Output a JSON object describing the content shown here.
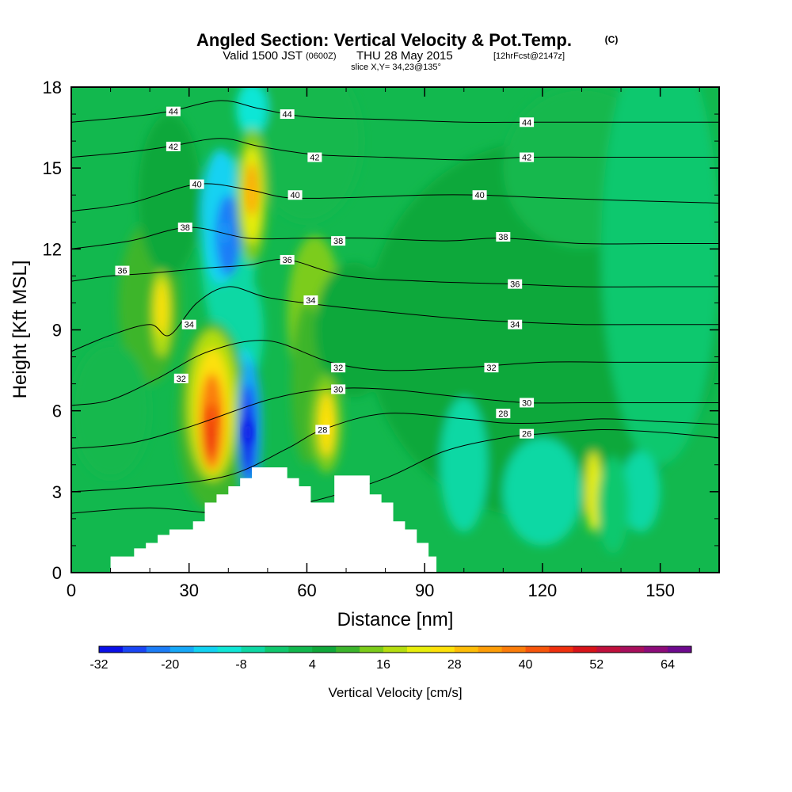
{
  "header": {
    "title": "Angled Section: Vertical Velocity & Pot.Temp.",
    "title_unit": "(C)",
    "valid_prefix": "Valid 1500 JST",
    "valid_utc": "(0600Z)",
    "valid_date": "THU 28 May 2015",
    "forecast": "[12hrFcst@2147z]",
    "slice": "slice X,Y= 34,23@135°"
  },
  "chart_data": {
    "type": "heatmap",
    "xlabel": "Distance [nm]",
    "ylabel": "Height [Kft MSL]",
    "xlim": [
      0,
      165
    ],
    "ylim": [
      0,
      18
    ],
    "xticks": [
      0,
      30,
      60,
      90,
      120,
      150
    ],
    "yticks": [
      0,
      3,
      6,
      9,
      12,
      15,
      18
    ],
    "field_description": "Vertical Velocity [cm/s] shaded, potential temperature (C) contoured",
    "colorbar": {
      "title": "Vertical Velocity [cm/s]",
      "tick_labels": [
        "-32",
        "-20",
        "-8",
        "4",
        "16",
        "28",
        "40",
        "52",
        "64"
      ],
      "tick_values": [
        -32,
        -20,
        -8,
        4,
        16,
        28,
        40,
        52,
        64
      ],
      "levels": [
        -32,
        -28,
        -24,
        -20,
        -16,
        -12,
        -8,
        -4,
        0,
        4,
        8,
        12,
        16,
        20,
        24,
        28,
        32,
        36,
        40,
        44,
        48,
        52,
        56,
        60,
        64,
        68
      ],
      "colors": [
        "#0a10e8",
        "#1a46f5",
        "#1c7df7",
        "#17a8f8",
        "#12d2f2",
        "#10e6d6",
        "#0ed8a4",
        "#10c86e",
        "#12b84e",
        "#10a83a",
        "#3cb52c",
        "#7ccc1a",
        "#b5de10",
        "#e8ee0c",
        "#fde10a",
        "#fdbd08",
        "#fd9d08",
        "#fb7d0a",
        "#f7560c",
        "#ef300e",
        "#d8141a",
        "#c0103c",
        "#a80f5c",
        "#8d0c7a",
        "#6e0a8e"
      ]
    },
    "features": [
      {
        "label": "updraft core",
        "x": 36,
        "y": 5.8,
        "value": 40
      },
      {
        "label": "updraft aloft",
        "x": 46,
        "y": 14,
        "value": 30
      },
      {
        "label": "downdraft core",
        "x": 45,
        "y": 5.2,
        "value": -30
      },
      {
        "label": "downdraft aloft",
        "x": 39,
        "y": 12.6,
        "value": -20
      },
      {
        "label": "secondary updraft",
        "x": 65,
        "y": 5.5,
        "value": 24
      }
    ],
    "isentropes": [
      {
        "value": 26,
        "points": [
          [
            0,
            2.2
          ],
          [
            20,
            2.4
          ],
          [
            40,
            2.2
          ],
          [
            60,
            2.6
          ],
          [
            80,
            3.5
          ],
          [
            95,
            4.5
          ],
          [
            110,
            5.0
          ],
          [
            120,
            5.15
          ],
          [
            135,
            5.3
          ],
          [
            150,
            5.2
          ],
          [
            165,
            5.0
          ]
        ]
      },
      {
        "value": 28,
        "points": [
          [
            0,
            3.0
          ],
          [
            20,
            3.2
          ],
          [
            40,
            3.6
          ],
          [
            55,
            4.6
          ],
          [
            64,
            5.3
          ],
          [
            80,
            5.9
          ],
          [
            100,
            5.7
          ],
          [
            110,
            5.55
          ],
          [
            120,
            5.55
          ],
          [
            135,
            5.7
          ],
          [
            150,
            5.6
          ],
          [
            165,
            5.5
          ]
        ]
      },
      {
        "value": 30,
        "points": [
          [
            0,
            4.6
          ],
          [
            15,
            4.8
          ],
          [
            30,
            5.4
          ],
          [
            50,
            6.4
          ],
          [
            65,
            6.8
          ],
          [
            80,
            6.8
          ],
          [
            100,
            6.5
          ],
          [
            116,
            6.3
          ],
          [
            130,
            6.3
          ],
          [
            150,
            6.3
          ],
          [
            165,
            6.3
          ]
        ]
      },
      {
        "value": 32,
        "points": [
          [
            0,
            6.2
          ],
          [
            10,
            6.4
          ],
          [
            22,
            7.2
          ],
          [
            35,
            8.2
          ],
          [
            50,
            8.6
          ],
          [
            66,
            7.8
          ],
          [
            80,
            7.5
          ],
          [
            100,
            7.6
          ],
          [
            120,
            7.8
          ],
          [
            140,
            7.8
          ],
          [
            165,
            7.8
          ]
        ]
      },
      {
        "value": 34,
        "points": [
          [
            0,
            8.2
          ],
          [
            10,
            8.8
          ],
          [
            20,
            9.2
          ],
          [
            25,
            8.8
          ],
          [
            32,
            10.0
          ],
          [
            40,
            10.6
          ],
          [
            50,
            10.2
          ],
          [
            65,
            9.9
          ],
          [
            85,
            9.6
          ],
          [
            100,
            9.4
          ],
          [
            112,
            9.3
          ],
          [
            130,
            9.2
          ],
          [
            150,
            9.2
          ],
          [
            165,
            9.2
          ]
        ]
      },
      {
        "value": 36,
        "points": [
          [
            0,
            10.8
          ],
          [
            10,
            11.0
          ],
          [
            20,
            11.1
          ],
          [
            35,
            11.3
          ],
          [
            45,
            11.4
          ],
          [
            55,
            11.6
          ],
          [
            70,
            11.0
          ],
          [
            90,
            10.8
          ],
          [
            112,
            10.7
          ],
          [
            130,
            10.6
          ],
          [
            150,
            10.6
          ],
          [
            165,
            10.6
          ]
        ]
      },
      {
        "value": 38,
        "points": [
          [
            0,
            12.0
          ],
          [
            15,
            12.3
          ],
          [
            30,
            12.8
          ],
          [
            45,
            12.4
          ],
          [
            60,
            12.4
          ],
          [
            75,
            12.4
          ],
          [
            95,
            12.3
          ],
          [
            110,
            12.4
          ],
          [
            130,
            12.2
          ],
          [
            150,
            12.2
          ],
          [
            165,
            12.2
          ]
        ]
      },
      {
        "value": 40,
        "points": [
          [
            0,
            13.4
          ],
          [
            15,
            13.7
          ],
          [
            32,
            14.4
          ],
          [
            45,
            14.2
          ],
          [
            55,
            13.9
          ],
          [
            70,
            13.9
          ],
          [
            90,
            14.0
          ],
          [
            104,
            14.0
          ],
          [
            120,
            13.9
          ],
          [
            140,
            13.8
          ],
          [
            165,
            13.7
          ]
        ]
      },
      {
        "value": 42,
        "points": [
          [
            0,
            15.4
          ],
          [
            15,
            15.6
          ],
          [
            25,
            15.8
          ],
          [
            38,
            16.1
          ],
          [
            48,
            15.8
          ],
          [
            62,
            15.5
          ],
          [
            80,
            15.4
          ],
          [
            100,
            15.3
          ],
          [
            116,
            15.4
          ],
          [
            135,
            15.4
          ],
          [
            165,
            15.4
          ]
        ]
      },
      {
        "value": 44,
        "points": [
          [
            0,
            16.7
          ],
          [
            15,
            16.9
          ],
          [
            25,
            17.1
          ],
          [
            38,
            17.5
          ],
          [
            48,
            17.2
          ],
          [
            60,
            16.9
          ],
          [
            80,
            16.8
          ],
          [
            100,
            16.7
          ],
          [
            116,
            16.7
          ],
          [
            135,
            16.7
          ],
          [
            165,
            16.7
          ]
        ]
      }
    ],
    "isentrope_labels": [
      {
        "text": "44",
        "x": 26,
        "y": 17.1
      },
      {
        "text": "44",
        "x": 55,
        "y": 17.0
      },
      {
        "text": "44",
        "x": 116,
        "y": 16.7
      },
      {
        "text": "42",
        "x": 26,
        "y": 15.8
      },
      {
        "text": "42",
        "x": 62,
        "y": 15.4
      },
      {
        "text": "42",
        "x": 116,
        "y": 15.4
      },
      {
        "text": "40",
        "x": 32,
        "y": 14.4
      },
      {
        "text": "40",
        "x": 57,
        "y": 14.0
      },
      {
        "text": "40",
        "x": 104,
        "y": 14.0
      },
      {
        "text": "38",
        "x": 29,
        "y": 12.8
      },
      {
        "text": "38",
        "x": 68,
        "y": 12.3
      },
      {
        "text": "38",
        "x": 110,
        "y": 12.45
      },
      {
        "text": "36",
        "x": 13,
        "y": 11.2
      },
      {
        "text": "36",
        "x": 55,
        "y": 11.6
      },
      {
        "text": "36",
        "x": 113,
        "y": 10.7
      },
      {
        "text": "34",
        "x": 61,
        "y": 10.1
      },
      {
        "text": "34",
        "x": 30,
        "y": 9.2
      },
      {
        "text": "34",
        "x": 113,
        "y": 9.2
      },
      {
        "text": "32",
        "x": 28,
        "y": 7.2
      },
      {
        "text": "32",
        "x": 68,
        "y": 7.6
      },
      {
        "text": "32",
        "x": 107,
        "y": 7.6
      },
      {
        "text": "30",
        "x": 68,
        "y": 6.8
      },
      {
        "text": "30",
        "x": 116,
        "y": 6.3
      },
      {
        "text": "28",
        "x": 64,
        "y": 5.3
      },
      {
        "text": "28",
        "x": 110,
        "y": 5.9
      },
      {
        "text": "26",
        "x": 116,
        "y": 5.15
      }
    ],
    "terrain": [
      [
        10,
        0.6
      ],
      [
        13,
        0.6
      ],
      [
        16,
        0.9
      ],
      [
        19,
        1.1
      ],
      [
        22,
        1.4
      ],
      [
        25,
        1.6
      ],
      [
        28,
        1.6
      ],
      [
        31,
        1.9
      ],
      [
        34,
        2.6
      ],
      [
        37,
        2.9
      ],
      [
        40,
        3.2
      ],
      [
        43,
        3.5
      ],
      [
        46,
        3.9
      ],
      [
        52,
        3.9
      ],
      [
        55,
        3.5
      ],
      [
        58,
        3.2
      ],
      [
        61,
        2.6
      ],
      [
        64,
        2.6
      ],
      [
        67,
        3.6
      ],
      [
        73,
        3.6
      ],
      [
        76,
        2.9
      ],
      [
        79,
        2.6
      ],
      [
        82,
        1.9
      ],
      [
        85,
        1.6
      ],
      [
        88,
        1.1
      ],
      [
        91,
        0.6
      ],
      [
        93,
        0.3
      ]
    ]
  }
}
